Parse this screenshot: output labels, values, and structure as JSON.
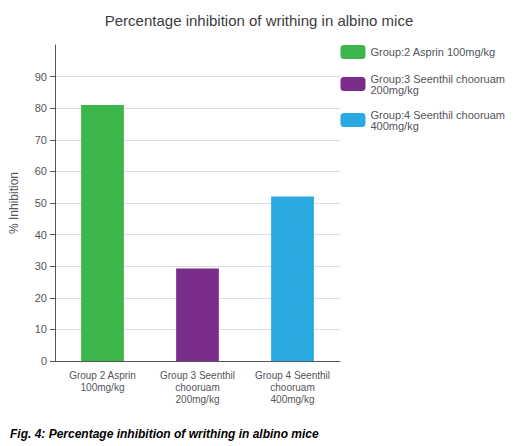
{
  "chart_data": {
    "type": "bar",
    "title": "Percentage inhibition of writhing in albino mice",
    "categories": [
      "Group 2 Asprin\n100mg/kg",
      "Group 3 Seenthil\nchooruam\n200mg/kg",
      "Group 4 Seenthil\nchooruam\n400mg/kg"
    ],
    "series": [
      {
        "name": "Group:2 Asprin 100mg/kg",
        "color": "#3cb54a",
        "values": [
          80.99,
          null,
          null
        ]
      },
      {
        "name": "Group:3 Seenthil chooruam\n200mg/kg",
        "color": "#7b2d8b",
        "values": [
          null,
          29.28,
          null
        ]
      },
      {
        "name": "Group:4 Seenthil chooruam\n400mg/kg",
        "color": "#29abe2",
        "values": [
          null,
          null,
          52.09
        ]
      }
    ],
    "ylabel": "% Inhibition",
    "ylim": [
      0,
      100
    ],
    "yticks": [
      0,
      10,
      20,
      30,
      40,
      50,
      60,
      70,
      80,
      90
    ],
    "grid": true,
    "legend": "upper right",
    "caption": "Fig. 4: Percentage inhibition of writhing in albino mice"
  }
}
